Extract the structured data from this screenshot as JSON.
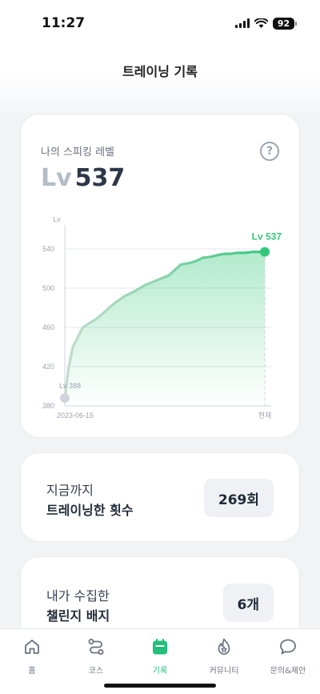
{
  "status_bar": {
    "time": "11:27",
    "battery": "92"
  },
  "header": {
    "title": "트레이닝 기록"
  },
  "level_card": {
    "label": "나의 스피킹 레벨",
    "help_glyph": "?",
    "level_prefix": "Lv",
    "level_value": "537"
  },
  "chart_data": {
    "type": "area",
    "ylabel": "Lv",
    "ylim": [
      380,
      540
    ],
    "y_ticks": [
      "540",
      "500",
      "460",
      "420",
      "380"
    ],
    "x_tick_labels": [
      "2023-06-15",
      "현재"
    ],
    "start_label": "Lv 388",
    "end_label": "Lv 537",
    "x": [
      0,
      2,
      4,
      6,
      9,
      12,
      16,
      20,
      25,
      30,
      35,
      40,
      46,
      52,
      58,
      63,
      66,
      69,
      73,
      77,
      80,
      83,
      86,
      90,
      94,
      97,
      100
    ],
    "values": [
      388,
      420,
      440,
      448,
      460,
      464,
      469,
      476,
      485,
      492,
      497,
      503,
      508,
      513,
      524,
      526,
      528,
      531,
      532,
      534,
      535,
      535,
      536,
      536,
      537,
      537,
      537
    ],
    "colors": {
      "line": "#34c77b",
      "line_start": "#c3dccd",
      "fill": "#34c77b",
      "point_start": "#d1d5db"
    }
  },
  "training_count": {
    "line1": "지금까지",
    "line2": "트레이닝한 횟수",
    "value": "269회"
  },
  "badges": {
    "line1": "내가 수집한",
    "line2": "챌린지 배지",
    "value": "6개"
  },
  "tab_bar": {
    "items": [
      {
        "label": "홈",
        "icon": "home-icon"
      },
      {
        "label": "코스",
        "icon": "route-icon"
      },
      {
        "label": "기록",
        "icon": "calendar-icon",
        "active": true
      },
      {
        "label": "커뮤니티",
        "icon": "fire-icon"
      },
      {
        "label": "문의&제안",
        "icon": "chat-icon"
      }
    ],
    "active_color": "#22c07a"
  }
}
